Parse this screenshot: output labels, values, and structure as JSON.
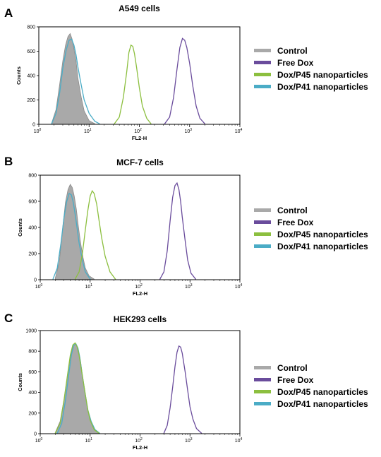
{
  "legend": {
    "entries": [
      {
        "label": "Control",
        "color": "#a9a9a9"
      },
      {
        "label": "Free Dox",
        "color": "#6a4c9c"
      },
      {
        "label": "Dox/P45 nanoparticles",
        "color": "#8cbf3f"
      },
      {
        "label": "Dox/P41 nanoparticles",
        "color": "#4bacc6"
      }
    ]
  },
  "chart_data": [
    {
      "type": "area",
      "panel_letter": "A",
      "title": "A549 cells",
      "xlabel": "FL2-H",
      "ylabel": "Counts",
      "x_scale": "log",
      "xlim": [
        1,
        10000
      ],
      "ylim": [
        0,
        800
      ],
      "x_ticks": [
        "10",
        "10",
        "10",
        "10",
        "10"
      ],
      "x_tick_exponents": [
        "0",
        "1",
        "2",
        "3",
        "4"
      ],
      "y_ticks": [
        "0",
        "200",
        "400",
        "600",
        "800"
      ],
      "series": [
        {
          "name": "Control",
          "fill": true,
          "x": [
            1.8,
            2.2,
            2.6,
            3.0,
            3.4,
            3.8,
            4.2,
            4.6,
            5.0,
            5.5,
            6.0,
            7.0,
            8.0,
            10.0,
            13.0
          ],
          "y": [
            10,
            120,
            330,
            520,
            650,
            720,
            745,
            700,
            620,
            520,
            380,
            220,
            110,
            30,
            5
          ]
        },
        {
          "name": "Dox/P41 nanoparticles",
          "fill": false,
          "x": [
            1.8,
            2.2,
            2.6,
            3.0,
            3.5,
            4.0,
            4.5,
            5.0,
            5.5,
            6.0,
            7.0,
            8.0,
            10.0,
            13.0,
            16.0
          ],
          "y": [
            5,
            90,
            260,
            460,
            610,
            690,
            700,
            650,
            570,
            470,
            320,
            200,
            90,
            25,
            5
          ]
        },
        {
          "name": "Dox/P45 nanoparticles",
          "fill": false,
          "x": [
            32,
            40,
            48,
            56,
            62,
            68,
            74,
            80,
            88,
            100,
            115,
            140,
            170
          ],
          "y": [
            5,
            60,
            220,
            430,
            590,
            650,
            640,
            580,
            470,
            300,
            150,
            50,
            5
          ]
        },
        {
          "name": "Free Dox",
          "fill": false,
          "x": [
            320,
            400,
            480,
            560,
            640,
            720,
            800,
            880,
            1000,
            1150,
            1350,
            1600,
            2000
          ],
          "y": [
            5,
            60,
            220,
            450,
            630,
            705,
            690,
            630,
            500,
            320,
            150,
            50,
            5
          ]
        }
      ]
    },
    {
      "type": "area",
      "panel_letter": "B",
      "title": "MCF-7 cells",
      "xlabel": "FL2-H",
      "ylabel": "Counts",
      "x_scale": "log",
      "xlim": [
        1,
        10000
      ],
      "ylim": [
        0,
        800
      ],
      "x_ticks": [
        "10",
        "10",
        "10",
        "10",
        "10"
      ],
      "x_tick_exponents": [
        "0",
        "1",
        "2",
        "3",
        "4"
      ],
      "y_ticks": [
        "0",
        "200",
        "400",
        "600",
        "800"
      ],
      "series": [
        {
          "name": "Control",
          "fill": true,
          "x": [
            2.0,
            2.4,
            2.8,
            3.2,
            3.6,
            4.0,
            4.4,
            4.8,
            5.3,
            5.8,
            6.4,
            7.2,
            8.0,
            9.5,
            12.0
          ],
          "y": [
            10,
            130,
            380,
            590,
            690,
            730,
            705,
            640,
            540,
            410,
            290,
            170,
            90,
            30,
            5
          ]
        },
        {
          "name": "Dox/P41 nanoparticles",
          "fill": false,
          "x": [
            1.8,
            2.2,
            2.6,
            3.0,
            3.4,
            3.8,
            4.2,
            4.6,
            5.0,
            5.5,
            6.0,
            7.0,
            8.0,
            10.0
          ],
          "y": [
            5,
            90,
            280,
            480,
            600,
            660,
            650,
            590,
            500,
            390,
            280,
            150,
            60,
            5
          ]
        },
        {
          "name": "Dox/P45 nanoparticles",
          "fill": false,
          "x": [
            5.0,
            6.0,
            7.0,
            8.0,
            9.0,
            10.0,
            11.0,
            12.0,
            13.5,
            15.0,
            17.0,
            20.0,
            25.0,
            32.0
          ],
          "y": [
            5,
            60,
            200,
            380,
            530,
            640,
            680,
            660,
            580,
            460,
            320,
            180,
            60,
            5
          ]
        },
        {
          "name": "Free Dox",
          "fill": false,
          "x": [
            250,
            300,
            350,
            400,
            450,
            500,
            550,
            600,
            650,
            700,
            800,
            900,
            1050,
            1300
          ],
          "y": [
            5,
            60,
            220,
            450,
            630,
            720,
            740,
            690,
            600,
            480,
            300,
            150,
            50,
            5
          ]
        }
      ]
    },
    {
      "type": "area",
      "panel_letter": "C",
      "title": "HEK293 cells",
      "xlabel": "FL2-H",
      "ylabel": "Counts",
      "x_scale": "log",
      "xlim": [
        1,
        10000
      ],
      "ylim": [
        0,
        1000
      ],
      "x_ticks": [
        "10",
        "10",
        "10",
        "10",
        "10"
      ],
      "x_tick_exponents": [
        "0",
        "1",
        "2",
        "3",
        "4"
      ],
      "y_ticks": [
        "0",
        "200",
        "400",
        "600",
        "800",
        "1000"
      ],
      "series": [
        {
          "name": "Control",
          "fill": true,
          "x": [
            2.0,
            2.5,
            3.0,
            3.5,
            4.0,
            4.5,
            5.0,
            5.5,
            6.0,
            6.5,
            7.0,
            8.0,
            9.0,
            10.0,
            12.0,
            15.0
          ],
          "y": [
            10,
            120,
            330,
            560,
            740,
            840,
            870,
            850,
            780,
            690,
            560,
            380,
            230,
            130,
            40,
            5
          ]
        },
        {
          "name": "Dox/P45 nanoparticles",
          "fill": false,
          "x": [
            2.0,
            2.5,
            3.0,
            3.5,
            4.0,
            4.5,
            5.0,
            5.5,
            6.0,
            7.0,
            8.0,
            9.0,
            10.0,
            12.0,
            15.0
          ],
          "y": [
            5,
            100,
            330,
            560,
            760,
            860,
            880,
            840,
            760,
            560,
            380,
            230,
            130,
            40,
            5
          ]
        },
        {
          "name": "Dox/P41 nanoparticles",
          "fill": false,
          "x": [
            2.2,
            2.7,
            3.2,
            3.7,
            4.2,
            4.7,
            5.2,
            5.7,
            6.2,
            7.0,
            8.0,
            9.0,
            10.5,
            12.5,
            15.5
          ],
          "y": [
            5,
            100,
            320,
            560,
            760,
            860,
            870,
            830,
            740,
            560,
            380,
            230,
            120,
            40,
            5
          ]
        },
        {
          "name": "Free Dox",
          "fill": false,
          "x": [
            300,
            350,
            400,
            450,
            500,
            550,
            600,
            650,
            700,
            800,
            900,
            1000,
            1150,
            1350,
            1700
          ],
          "y": [
            5,
            80,
            250,
            450,
            650,
            790,
            850,
            840,
            780,
            600,
            420,
            260,
            140,
            50,
            5
          ]
        }
      ]
    }
  ]
}
